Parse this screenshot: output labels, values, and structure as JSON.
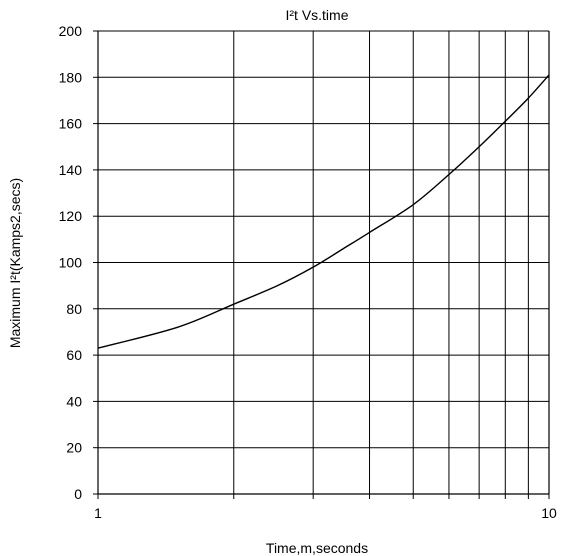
{
  "chart_data": {
    "type": "line",
    "title": "I²t  Vs.time",
    "xlabel": "Time,m,seconds",
    "ylabel": "Maximum I²t(Kamps2,secs)",
    "xscale": "log",
    "xlim": [
      1,
      10
    ],
    "ylim": [
      0,
      200
    ],
    "grid": true,
    "x_ticks": [
      1,
      10
    ],
    "x_tick_labels": [
      "1",
      "10"
    ],
    "y_ticks": [
      0,
      20,
      40,
      60,
      80,
      100,
      120,
      140,
      160,
      180,
      200
    ],
    "y_tick_labels": [
      "0",
      "20",
      "40",
      "60",
      "80",
      "100",
      "120",
      "140",
      "160",
      "180",
      "200"
    ],
    "series": [
      {
        "x": [
          1,
          1.5,
          2,
          2.5,
          3,
          3.5,
          4,
          5,
          6,
          7,
          8,
          9,
          10
        ],
        "y": [
          63,
          72,
          82,
          90,
          98,
          106,
          113,
          125,
          138,
          150,
          161,
          171,
          181
        ],
        "color": "#000000"
      }
    ]
  }
}
